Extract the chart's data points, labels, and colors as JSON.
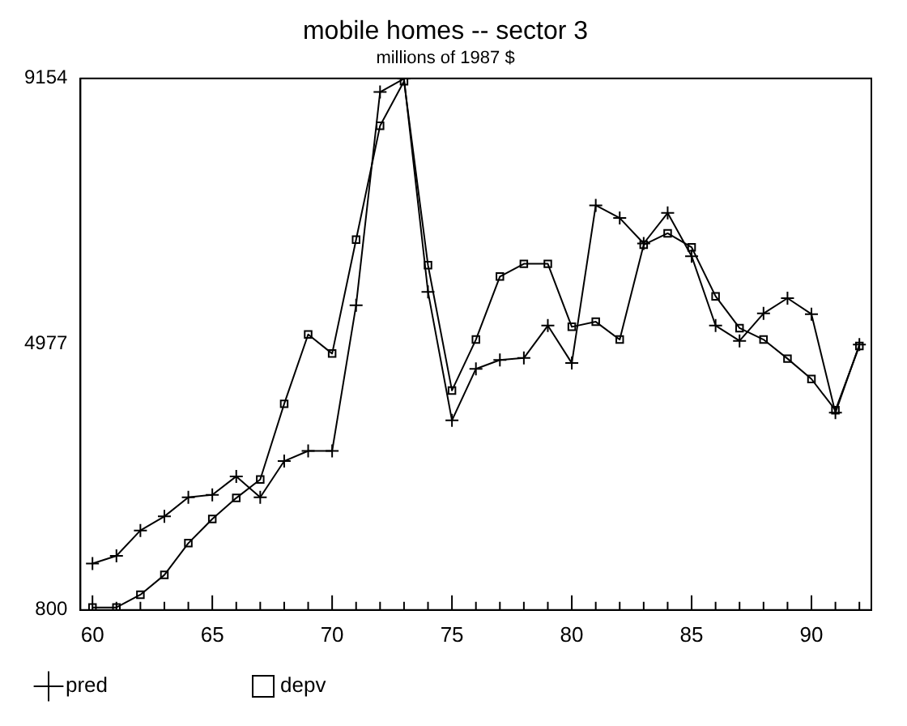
{
  "chart_data": {
    "type": "line",
    "title": "mobile homes -- sector 3",
    "subtitle": "millions of 1987 $",
    "x": [
      60,
      61,
      62,
      63,
      64,
      65,
      66,
      67,
      68,
      69,
      70,
      71,
      72,
      73,
      74,
      75,
      76,
      77,
      78,
      79,
      80,
      81,
      82,
      83,
      84,
      85,
      86,
      87,
      88,
      89,
      90,
      91,
      92
    ],
    "series": [
      {
        "name": "pred",
        "color": "#000000",
        "marker": "cross",
        "values": [
          1530,
          1650,
          2050,
          2270,
          2570,
          2610,
          2900,
          2570,
          3140,
          3300,
          3300,
          5590,
          8940,
          9150,
          5800,
          3780,
          4590,
          4730,
          4760,
          5270,
          4680,
          7160,
          6960,
          6560,
          7040,
          6360,
          5270,
          5030,
          5460,
          5700,
          5450,
          3900,
          4970
        ]
      },
      {
        "name": "depv",
        "color": "#000000",
        "marker": "square",
        "values": [
          840,
          840,
          1040,
          1350,
          1850,
          2230,
          2560,
          2850,
          4040,
          5130,
          4830,
          6620,
          8410,
          9110,
          6220,
          4250,
          5050,
          6040,
          6240,
          6240,
          5250,
          5330,
          5050,
          6540,
          6720,
          6500,
          5730,
          5230,
          5050,
          4750,
          4430,
          3940,
          4950
        ]
      }
    ],
    "xlim": [
      59.5,
      92.5
    ],
    "xticks": [
      60,
      {
        "value": 61,
        "label": null
      },
      {
        "value": 62,
        "label": null
      },
      {
        "value": 63,
        "label": null
      },
      {
        "value": 64,
        "label": null
      },
      65,
      {
        "value": 66,
        "label": null
      },
      {
        "value": 67,
        "label": null
      },
      {
        "value": 68,
        "label": null
      },
      {
        "value": 69,
        "label": null
      },
      70,
      {
        "value": 71,
        "label": null
      },
      {
        "value": 72,
        "label": null
      },
      {
        "value": 73,
        "label": null
      },
      {
        "value": 74,
        "label": null
      },
      75,
      {
        "value": 76,
        "label": null
      },
      {
        "value": 77,
        "label": null
      },
      {
        "value": 78,
        "label": null
      },
      {
        "value": 79,
        "label": null
      },
      80,
      {
        "value": 81,
        "label": null
      },
      {
        "value": 82,
        "label": null
      },
      {
        "value": 83,
        "label": null
      },
      {
        "value": 84,
        "label": null
      },
      85,
      {
        "value": 86,
        "label": null
      },
      {
        "value": 87,
        "label": null
      },
      {
        "value": 88,
        "label": null
      },
      {
        "value": 89,
        "label": null
      },
      90,
      {
        "value": 91,
        "label": null
      },
      {
        "value": 92,
        "label": null
      }
    ],
    "ylim": [
      800,
      9154
    ],
    "yticks": [
      800,
      4977,
      9154
    ],
    "grid": false,
    "legend": "bottom left",
    "line_style": "solid"
  }
}
